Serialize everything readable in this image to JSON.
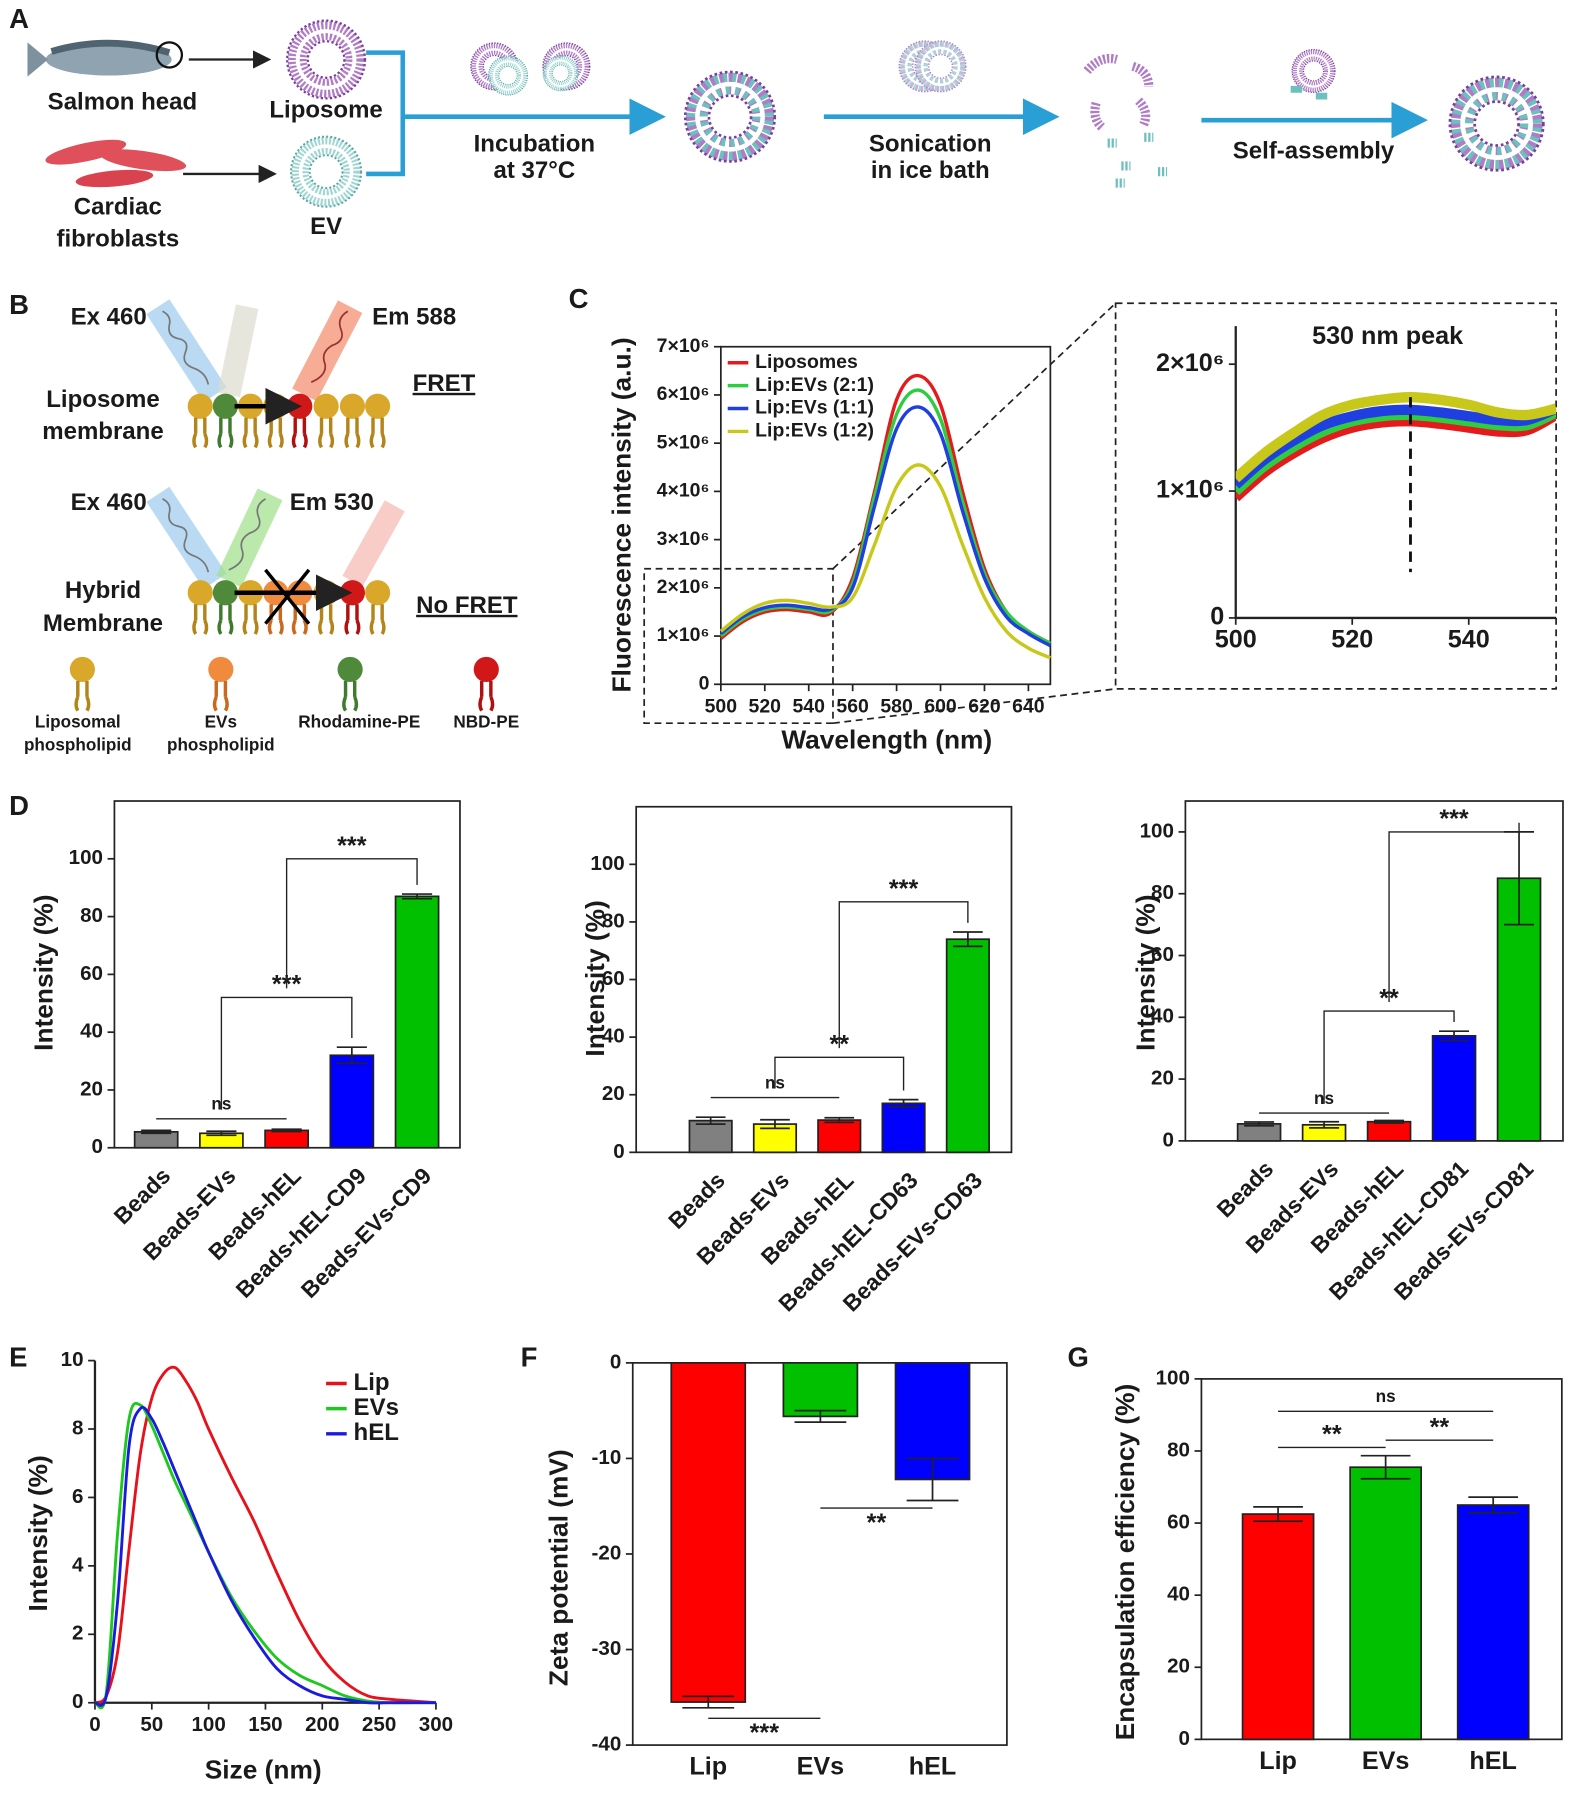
{
  "panel_a": {
    "label": "A",
    "salmon": "Salmon head",
    "liposome": "Liposome",
    "fibroblasts": [
      "Cardiac",
      "fibroblasts"
    ],
    "ev": "EV",
    "incubation": [
      "Incubation",
      "at 37°C"
    ],
    "sonication": [
      "Sonication",
      "in ice bath"
    ],
    "self_assembly": "Self-assembly"
  },
  "panel_b": {
    "label": "B",
    "fret": {
      "excitation": "Ex 460",
      "emission": "Em 588",
      "membrane": [
        "Liposome",
        "membrane"
      ],
      "result": "FRET"
    },
    "no_fret": {
      "excitation": "Ex 460",
      "emission": "Em 530",
      "membrane": [
        "Hybrid",
        "Membrane"
      ],
      "result": "No FRET"
    },
    "legend": [
      [
        "Liposomal",
        "phospholipid"
      ],
      [
        "EVs",
        "phospholipid"
      ],
      [
        "Rhodamine-PE"
      ],
      [
        "NBD-PE"
      ]
    ]
  },
  "chart_data": [
    {
      "panel": "C",
      "type": "line",
      "frame": "box",
      "x_label": "Wavelength (nm)",
      "y_label": "Fluorescence intensity  (a.u.)",
      "legend": "upper left",
      "x": [
        500,
        510,
        520,
        530,
        540,
        550,
        560,
        570,
        580,
        590,
        600,
        610,
        620,
        630,
        640,
        650
      ],
      "series": [
        {
          "name": "Liposomes",
          "color": "#e41a1c",
          "values": [
            950000,
            1300000,
            1500000,
            1550000,
            1500000,
            1480000,
            2200000,
            4000000,
            5900000,
            6400000,
            5800000,
            4000000,
            2400000,
            1500000,
            1100000,
            850000
          ]
        },
        {
          "name": "Lip:EVs (2:1)",
          "color": "#2ecc40",
          "values": [
            1000000,
            1350000,
            1550000,
            1600000,
            1550000,
            1520000,
            2100000,
            3900000,
            5600000,
            6100000,
            5500000,
            3800000,
            2300000,
            1500000,
            1100000,
            850000
          ]
        },
        {
          "name": "Lip:EVs (1:1)",
          "color": "#1f3fe0",
          "values": [
            1050000,
            1400000,
            1590000,
            1640000,
            1590000,
            1560000,
            2000000,
            3700000,
            5300000,
            5750000,
            5200000,
            3600000,
            2200000,
            1400000,
            1050000,
            800000
          ]
        },
        {
          "name": "Lip:EVs (1:2)",
          "color": "#c8c81a",
          "values": [
            1100000,
            1460000,
            1680000,
            1740000,
            1680000,
            1600000,
            1800000,
            2900000,
            4100000,
            4550000,
            4100000,
            2900000,
            1800000,
            1100000,
            750000,
            550000
          ]
        }
      ],
      "xlim": [
        500,
        650
      ],
      "ylim": [
        0,
        7000000
      ],
      "xticks": [
        500,
        520,
        540,
        560,
        580,
        600,
        620,
        640
      ],
      "yticks": [
        0,
        {
          "value": 1000000,
          "label": "1×10⁶"
        },
        {
          "value": 2000000,
          "label": "2×10⁶"
        },
        {
          "value": 3000000,
          "label": "3×10⁶"
        },
        {
          "value": 4000000,
          "label": "4×10⁶"
        },
        {
          "value": 5000000,
          "label": "5×10⁶"
        },
        {
          "value": 6000000,
          "label": "6×10⁶"
        },
        {
          "value": 7000000,
          "label": "7×10⁶"
        }
      ]
    },
    {
      "type": "line",
      "frame": "axes",
      "annotation": {
        "text": "530 nm peak",
        "x": 530
      },
      "x": [
        500,
        505,
        510,
        515,
        520,
        525,
        530,
        535,
        540,
        545,
        550,
        555
      ],
      "series": [
        {
          "color": "#e41a1c",
          "values": [
            950000,
            1150000,
            1300000,
            1420000,
            1500000,
            1540000,
            1550000,
            1530000,
            1500000,
            1470000,
            1480000,
            1600000
          ]
        },
        {
          "color": "#2ecc40",
          "values": [
            1000000,
            1200000,
            1350000,
            1470000,
            1550000,
            1590000,
            1600000,
            1580000,
            1550000,
            1520000,
            1520000,
            1620000
          ]
        },
        {
          "color": "#1f3fe0",
          "values": [
            1050000,
            1250000,
            1400000,
            1520000,
            1590000,
            1630000,
            1640000,
            1620000,
            1590000,
            1560000,
            1560000,
            1650000
          ]
        },
        {
          "color": "#c8c81a",
          "values": [
            1100000,
            1300000,
            1460000,
            1600000,
            1680000,
            1720000,
            1740000,
            1720000,
            1680000,
            1620000,
            1600000,
            1650000
          ]
        }
      ],
      "xlim": [
        500,
        555
      ],
      "ylim": [
        0,
        2300000
      ],
      "xticks": [
        500,
        520,
        540
      ],
      "yticks": [
        0,
        {
          "value": 1000000,
          "label": "1×10⁶"
        },
        {
          "value": 2000000,
          "label": "2×10⁶"
        }
      ]
    },
    {
      "panel": "D",
      "type": "bar",
      "frame": "box",
      "y_label": "Intensity (%)",
      "category_label_rotation": -45,
      "categories": [
        "Beads",
        "Beads-EVs",
        "Beads-hEL",
        "Beads-hEL-CD9",
        "Beads-EVs-CD9"
      ],
      "values": [
        5.5,
        5,
        6,
        32,
        87
      ],
      "errors": [
        0.5,
        0.7,
        0.4,
        2.8,
        0.8
      ],
      "colors": [
        "#808080",
        "#ffff00",
        "#ff0000",
        "#0000ff",
        "#00c000"
      ],
      "ylim": [
        0,
        120
      ],
      "yticks": [
        0,
        20,
        40,
        60,
        80,
        100
      ],
      "significance": [
        {
          "label": "ns",
          "from": 0,
          "to": 2,
          "y": 10
        },
        {
          "label": "***",
          "from": 1,
          "to": 3,
          "y": 52,
          "bracket": true
        },
        {
          "label": "***",
          "from": 2,
          "to": 4,
          "y": 100,
          "bracket": true
        }
      ]
    },
    {
      "type": "bar",
      "frame": "box",
      "y_label": "Intensity (%)",
      "category_label_rotation": -45,
      "categories": [
        "Beads",
        "Beads-EVs",
        "Beads-hEL",
        "Beads-hEL-CD63",
        "Beads-EVs-CD63"
      ],
      "values": [
        11,
        9.8,
        11.2,
        17,
        74
      ],
      "errors": [
        1.2,
        1.5,
        0.8,
        1.3,
        2.5
      ],
      "colors": [
        "#808080",
        "#ffff00",
        "#ff0000",
        "#0000ff",
        "#00c000"
      ],
      "ylim": [
        0,
        120
      ],
      "yticks": [
        0,
        20,
        40,
        60,
        80,
        100
      ],
      "significance": [
        {
          "label": "ns",
          "from": 0,
          "to": 2,
          "y": 19
        },
        {
          "label": "**",
          "from": 1,
          "to": 3,
          "y": 33,
          "bracket": true
        },
        {
          "label": "***",
          "from": 2,
          "to": 4,
          "y": 87,
          "bracket": true
        }
      ]
    },
    {
      "type": "bar",
      "frame": "box",
      "y_label": "Intensity (%)",
      "category_label_rotation": -45,
      "categories": [
        "Beads",
        "Beads-EVs",
        "Beads-hEL",
        "Beads-hEL-CD81",
        "Beads-EVs-CD81"
      ],
      "values": [
        5.5,
        5.2,
        6.2,
        34,
        85
      ],
      "errors": [
        0.6,
        1,
        0.4,
        1.5,
        15
      ],
      "colors": [
        "#808080",
        "#ffff00",
        "#ff0000",
        "#0000ff",
        "#00c000"
      ],
      "ylim": [
        0,
        110
      ],
      "yticks": [
        0,
        20,
        40,
        60,
        80,
        100
      ],
      "significance": [
        {
          "label": "ns",
          "from": 0,
          "to": 2,
          "y": 9
        },
        {
          "label": "**",
          "from": 1,
          "to": 3,
          "y": 42,
          "bracket": true
        },
        {
          "label": "***",
          "from": 2,
          "to": 4,
          "y": 100,
          "bracket": true
        }
      ]
    },
    {
      "panel": "E",
      "type": "line",
      "frame": "axes",
      "x_label": "Size  (nm)",
      "y_label": "Intensity  (%)",
      "legend": "upper right",
      "x": [
        0,
        10,
        20,
        30,
        40,
        50,
        60,
        70,
        80,
        90,
        100,
        120,
        140,
        160,
        180,
        200,
        220,
        240,
        260,
        280,
        300
      ],
      "series": [
        {
          "name": "Lip",
          "color": "#e8101a",
          "values": [
            0,
            0.2,
            1.5,
            4.5,
            7.3,
            8.9,
            9.6,
            9.8,
            9.4,
            8.8,
            8.0,
            6.6,
            5.3,
            3.8,
            2.4,
            1.3,
            0.6,
            0.2,
            0.1,
            0.05,
            0
          ]
        },
        {
          "name": "EVs",
          "color": "#1ec81e",
          "values": [
            0,
            0.3,
            5,
            8.3,
            8.7,
            8.1,
            7.3,
            6.5,
            5.8,
            5.1,
            4.4,
            3.1,
            2.1,
            1.3,
            0.8,
            0.5,
            0.2,
            0.05,
            0,
            0,
            0
          ]
        },
        {
          "name": "hEL",
          "color": "#1a1ae0",
          "values": [
            0,
            0.2,
            3,
            7.5,
            8.6,
            8.3,
            7.6,
            6.8,
            6.0,
            5.2,
            4.4,
            3.0,
            1.9,
            1.0,
            0.5,
            0.2,
            0.1,
            0,
            0,
            0,
            0
          ]
        }
      ],
      "xlim": [
        0,
        300
      ],
      "ylim": [
        0,
        10
      ],
      "xticks": [
        0,
        50,
        100,
        150,
        200,
        250,
        300
      ],
      "yticks": [
        0,
        2,
        4,
        6,
        8,
        10
      ]
    },
    {
      "panel": "F",
      "type": "bar",
      "frame": "box",
      "y_label": "Zeta potential (mV)",
      "categories": [
        "Lip",
        "EVs",
        "hEL"
      ],
      "values": [
        -35.5,
        -5.6,
        -12.2
      ],
      "errors": [
        0.6,
        0.6,
        2.2
      ],
      "colors": [
        "#ff0000",
        "#00c000",
        "#0000ff"
      ],
      "ylim": [
        -40,
        0
      ],
      "yticks": [
        0,
        -10,
        -20,
        -30,
        -40
      ],
      "significance": [
        {
          "label": "**",
          "from": 1,
          "to": 2,
          "y": -15.2
        },
        {
          "label": "***",
          "from": 0,
          "to": 1,
          "y": -37.2
        }
      ]
    },
    {
      "panel": "G",
      "type": "bar",
      "frame": "box",
      "y_label": "Encapsulation efficiency (%)",
      "categories": [
        "Lip",
        "EVs",
        "hEL"
      ],
      "values": [
        62.5,
        75.5,
        65
      ],
      "errors": [
        2,
        3.2,
        2.2
      ],
      "colors": [
        "#ff0000",
        "#00c000",
        "#0000ff"
      ],
      "ylim": [
        0,
        100
      ],
      "yticks": [
        0,
        20,
        40,
        60,
        80,
        100
      ],
      "significance": [
        {
          "label": "ns",
          "from": 0,
          "to": 2,
          "y": 91
        },
        {
          "label": "**",
          "from": 0,
          "to": 1,
          "y": 81
        },
        {
          "label": "**",
          "from": 1,
          "to": 2,
          "y": 83
        }
      ]
    }
  ]
}
